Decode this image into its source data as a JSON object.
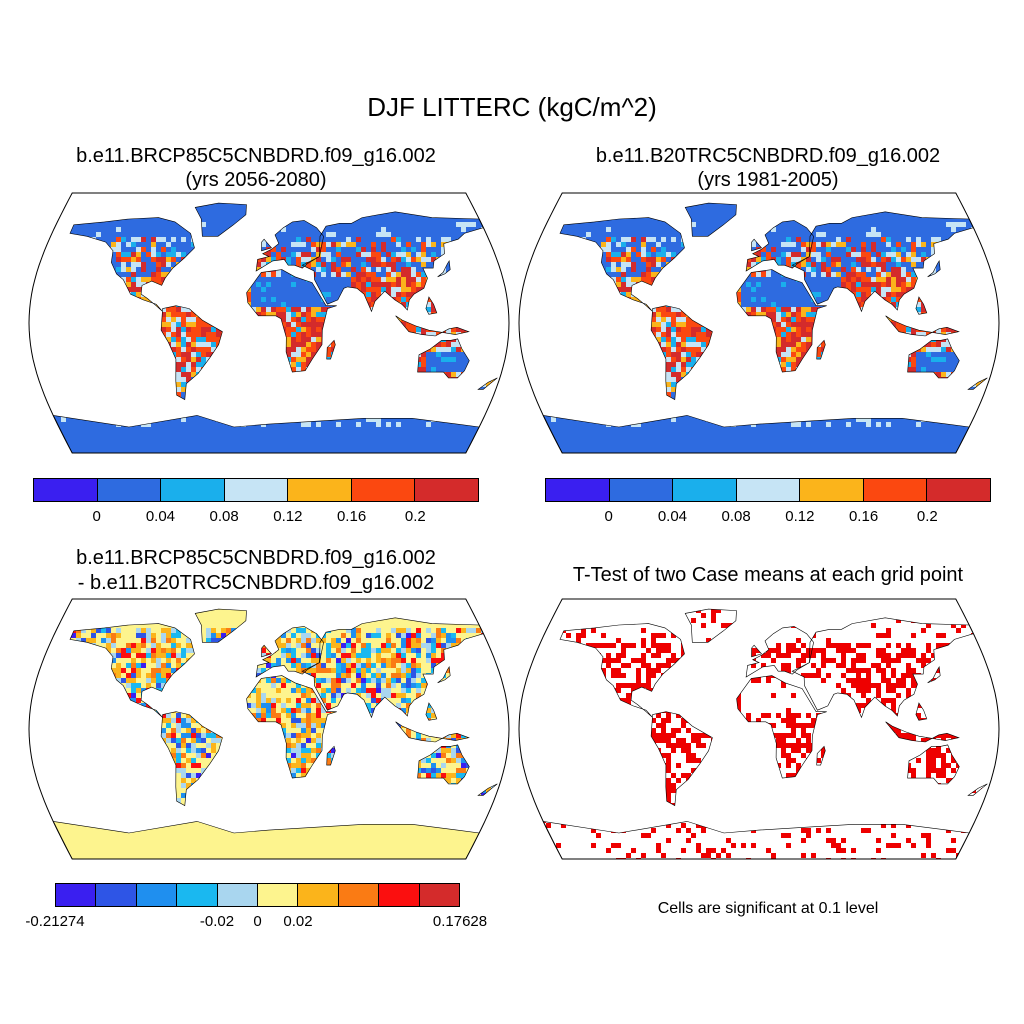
{
  "title": "DJF LITTERC (kgC/m^2)",
  "panels": [
    {
      "title_line1": "b.e11.BRCP85C5CNBDRD.f09_g16.002",
      "title_line2": "(yrs 2056-2080)"
    },
    {
      "title_line1": "b.e11.B20TRC5CNBDRD.f09_g16.002",
      "title_line2": "(yrs 1981-2005)"
    },
    {
      "title_line1": "b.e11.BRCP85C5CNBDRD.f09_g16.002",
      "title_line2": "- b.e11.B20TRC5CNBDRD.f09_g16.002"
    },
    {
      "title_line1": "T-Test of two Case means at each grid point",
      "note": "Cells are significant at 0.1 level"
    }
  ],
  "colorbars": {
    "absolute": {
      "colors": [
        "#3a1ff0",
        "#2e6be0",
        "#1aafec",
        "#c6e4f5",
        "#fbb41b",
        "#fb4810",
        "#d42b2b"
      ],
      "labels": [
        "0",
        "0.04",
        "0.08",
        "0.12",
        "0.16",
        "0.2"
      ]
    },
    "difference": {
      "colors": [
        "#3a1ff0",
        "#2e55e6",
        "#1f8fef",
        "#1ab8f0",
        "#a9d6ef",
        "#fdf48e",
        "#fbb41b",
        "#fa7b14",
        "#fb0f0f",
        "#d42b2b"
      ],
      "labels": [
        "-0.21274",
        "-0.02",
        "0",
        "0.02",
        "0.17628"
      ]
    }
  },
  "significance_color": "#ee0000"
}
